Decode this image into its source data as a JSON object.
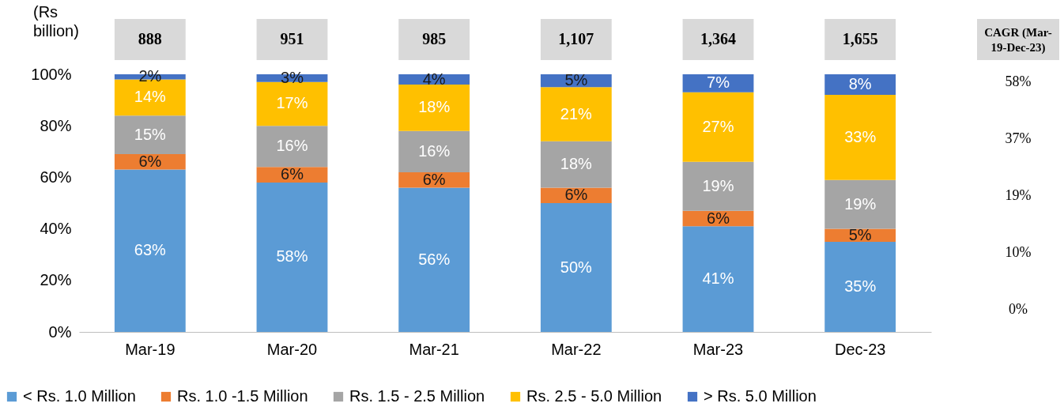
{
  "chart_data": {
    "type": "bar",
    "stacked": true,
    "categories": [
      "Mar-19",
      "Mar-20",
      "Mar-21",
      "Mar-22",
      "Mar-23",
      "Dec-23"
    ],
    "series": [
      {
        "name": "< Rs. 1.0 Million",
        "color": "#5b9bd5",
        "values": [
          63,
          58,
          56,
          50,
          41,
          35
        ]
      },
      {
        "name": "Rs. 1.0 -1.5 Million",
        "color": "#ed7d31",
        "values": [
          6,
          6,
          6,
          6,
          6,
          5
        ]
      },
      {
        "name": "Rs. 1.5 - 2.5 Million",
        "color": "#a5a5a5",
        "values": [
          15,
          16,
          16,
          18,
          19,
          19
        ]
      },
      {
        "name": "Rs. 2.5 - 5.0 Million",
        "color": "#ffc000",
        "values": [
          14,
          17,
          18,
          21,
          27,
          33
        ]
      },
      {
        "name": "> Rs. 5.0 Million",
        "color": "#4472c4",
        "values": [
          2,
          3,
          4,
          5,
          7,
          8
        ]
      }
    ],
    "ylim": [
      0,
      100
    ],
    "yticks": [
      {
        "value": 0,
        "label": "0%"
      },
      {
        "value": 20,
        "label": "20%"
      },
      {
        "value": 40,
        "label": "40%"
      },
      {
        "value": 60,
        "label": "60%"
      },
      {
        "value": 80,
        "label": "80%"
      },
      {
        "value": 100,
        "label": "100%"
      }
    ],
    "value_labels": [
      [
        "63%",
        "58%",
        "56%",
        "50%",
        "41%",
        "35%"
      ],
      [
        "6%",
        "6%",
        "6%",
        "6%",
        "6%",
        "5%"
      ],
      [
        "15%",
        "16%",
        "16%",
        "18%",
        "19%",
        "19%"
      ],
      [
        "14%",
        "17%",
        "18%",
        "21%",
        "27%",
        "33%"
      ],
      [
        "2%",
        "3%",
        "4%",
        "5%",
        "7%",
        "8%"
      ]
    ],
    "annotations": [
      "(Rs billion)",
      "CAGR (Mar-19-Dec-23)",
      "58%",
      "37%",
      "19%",
      "10%",
      "0%",
      "888",
      "951",
      "985",
      "1,107",
      "1,364",
      "1,655"
    ],
    "legend": "bottom",
    "grid": false
  }
}
